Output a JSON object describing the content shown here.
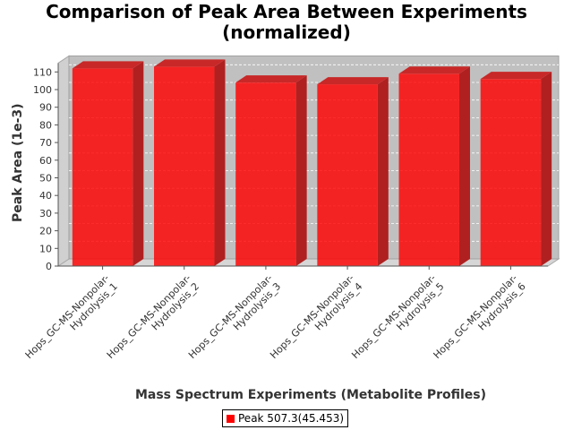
{
  "chart_data": {
    "type": "bar",
    "title": "Comparison of Peak Area Between Experiments",
    "subtitle": "(normalized)",
    "xlabel": "Mass Spectrum Experiments (Metabolite Profiles)",
    "ylabel": "Peak Area (1e-3)",
    "categories": [
      [
        "Hops_GC-MS-Nonpolar-",
        "Hydrolysis_1"
      ],
      [
        "Hops_GC-MS-Nonpolar-",
        "Hydrolysis_2"
      ],
      [
        "Hops_GC-MS-Nonpolar-",
        "Hydrolysis_3"
      ],
      [
        "Hops_GC-MS-Nonpolar-",
        "Hydrolysis_4"
      ],
      [
        "Hops_GC-MS-Nonpolar-",
        "Hydrolysis_5"
      ],
      [
        "Hops_GC-MS-Nonpolar-",
        "Hydrolysis_6"
      ]
    ],
    "series": [
      {
        "name": "Peak 507.3(45.453)",
        "values": [
          112,
          113,
          104,
          103,
          109,
          106
        ]
      }
    ],
    "ylim": [
      0,
      115
    ],
    "yticks": [
      0,
      10,
      20,
      30,
      40,
      50,
      60,
      70,
      80,
      90,
      100,
      110
    ],
    "grid": true,
    "legend": "bottom",
    "colors": {
      "bar": "#ff0000",
      "plot_background": "#c0c0c0",
      "grid": "#ffffff"
    }
  }
}
